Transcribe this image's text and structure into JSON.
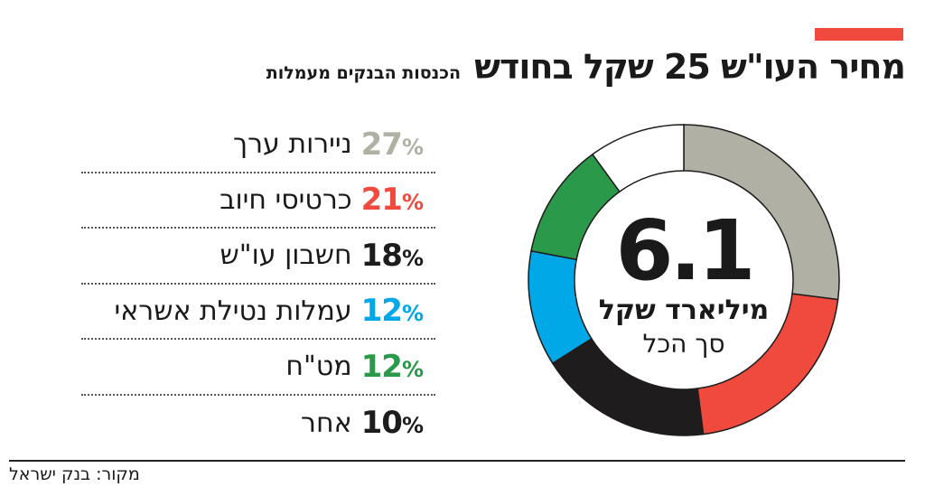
{
  "header": {
    "title": "מחיר העו\"ש 25 שקל בחודש",
    "subtitle": "הכנסות הבנקים מעמלות",
    "accent_color": "#f04a3e"
  },
  "chart_data": {
    "type": "pie",
    "variant": "donut",
    "center_value": "6.1",
    "center_unit": "מיליארד שקל",
    "center_caption": "סך הכל",
    "categories": [
      "ניירות ערך",
      "כרטיסי חיוב",
      "חשבון עו\"ש",
      "עמלות נטילת אשראי",
      "מט\"ח",
      "אחר"
    ],
    "values": [
      27,
      21,
      18,
      12,
      12,
      10
    ],
    "value_labels": [
      "27",
      "21",
      "18",
      "12",
      "12",
      "10"
    ],
    "percent_sign": "%",
    "colors": [
      "#b0b0a4",
      "#f04a3e",
      "#1e1c1d",
      "#00a8e8",
      "#2a9a4a",
      "#ffffff"
    ],
    "label_colors": [
      "#b0b0a4",
      "#f04a3e",
      "#1e1c1d",
      "#00a8e8",
      "#2a9a4a",
      "#1e1c1d"
    ],
    "legend_placement": "left"
  },
  "footer": {
    "source": "מקור: בנק ישראל"
  }
}
